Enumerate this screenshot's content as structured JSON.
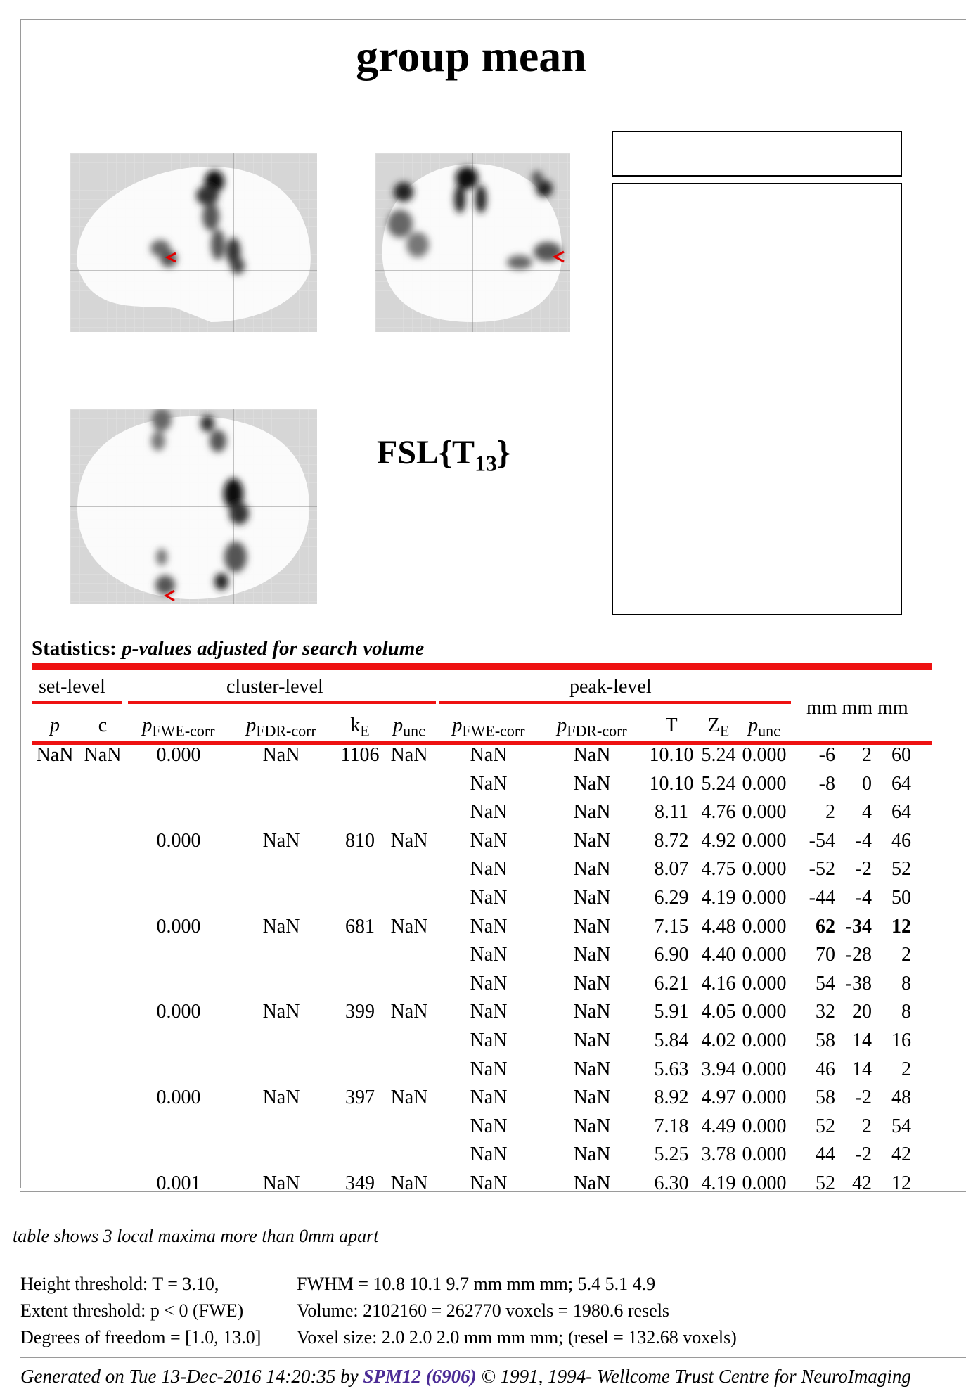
{
  "page": {
    "title": "group mean",
    "stat_label_main": "FSL{T",
    "stat_label_sub": "13",
    "stat_label_end": "}"
  },
  "statistics": {
    "heading_bold": "Statistics:",
    "heading_italic": "p-values adjusted for search volume",
    "groups": {
      "set": "set-level",
      "cluster": "cluster-level",
      "peak": "peak-level"
    },
    "coord_header": "mm mm mm",
    "columns": [
      {
        "key": "set_p",
        "main": "p",
        "sub": "",
        "italic": true
      },
      {
        "key": "set_c",
        "main": "c",
        "sub": "",
        "italic": false
      },
      {
        "key": "cl_fwe",
        "main": "p",
        "sub": "FWE-corr",
        "italic": true
      },
      {
        "key": "cl_fdr",
        "main": "p",
        "sub": "FDR-corr",
        "italic": true
      },
      {
        "key": "ke",
        "main": "k",
        "sub": "E",
        "italic": false
      },
      {
        "key": "cl_unc",
        "main": "p",
        "sub": "unc",
        "italic": true
      },
      {
        "key": "pk_fwe",
        "main": "p",
        "sub": "FWE-corr",
        "italic": true
      },
      {
        "key": "pk_fdr",
        "main": "p",
        "sub": "FDR-corr",
        "italic": true
      },
      {
        "key": "t",
        "main": "T",
        "sub": "",
        "italic": false
      },
      {
        "key": "ze",
        "main": "Z",
        "sub": "E",
        "italic": false
      },
      {
        "key": "pk_unc",
        "main": "p",
        "sub": "unc",
        "italic": true
      }
    ],
    "rows": [
      {
        "set_p": "NaN",
        "set_c": "NaN",
        "cl_fwe": "0.000",
        "cl_fdr": "NaN",
        "ke": "1106",
        "cl_unc": "NaN",
        "pk_fwe": "NaN",
        "pk_fdr": "NaN",
        "t": "10.10",
        "ze": "5.24",
        "pk_unc": "0.000",
        "x": "-6",
        "y": "2",
        "z": "60",
        "bold": false
      },
      {
        "set_p": "",
        "set_c": "",
        "cl_fwe": "",
        "cl_fdr": "",
        "ke": "",
        "cl_unc": "",
        "pk_fwe": "NaN",
        "pk_fdr": "NaN",
        "t": "10.10",
        "ze": "5.24",
        "pk_unc": "0.000",
        "x": "-8",
        "y": "0",
        "z": "64",
        "bold": false
      },
      {
        "set_p": "",
        "set_c": "",
        "cl_fwe": "",
        "cl_fdr": "",
        "ke": "",
        "cl_unc": "",
        "pk_fwe": "NaN",
        "pk_fdr": "NaN",
        "t": "8.11",
        "ze": "4.76",
        "pk_unc": "0.000",
        "x": "2",
        "y": "4",
        "z": "64",
        "bold": false
      },
      {
        "set_p": "",
        "set_c": "",
        "cl_fwe": "0.000",
        "cl_fdr": "NaN",
        "ke": "810",
        "cl_unc": "NaN",
        "pk_fwe": "NaN",
        "pk_fdr": "NaN",
        "t": "8.72",
        "ze": "4.92",
        "pk_unc": "0.000",
        "x": "-54",
        "y": "-4",
        "z": "46",
        "bold": false
      },
      {
        "set_p": "",
        "set_c": "",
        "cl_fwe": "",
        "cl_fdr": "",
        "ke": "",
        "cl_unc": "",
        "pk_fwe": "NaN",
        "pk_fdr": "NaN",
        "t": "8.07",
        "ze": "4.75",
        "pk_unc": "0.000",
        "x": "-52",
        "y": "-2",
        "z": "52",
        "bold": false
      },
      {
        "set_p": "",
        "set_c": "",
        "cl_fwe": "",
        "cl_fdr": "",
        "ke": "",
        "cl_unc": "",
        "pk_fwe": "NaN",
        "pk_fdr": "NaN",
        "t": "6.29",
        "ze": "4.19",
        "pk_unc": "0.000",
        "x": "-44",
        "y": "-4",
        "z": "50",
        "bold": false
      },
      {
        "set_p": "",
        "set_c": "",
        "cl_fwe": "0.000",
        "cl_fdr": "NaN",
        "ke": "681",
        "cl_unc": "NaN",
        "pk_fwe": "NaN",
        "pk_fdr": "NaN",
        "t": "7.15",
        "ze": "4.48",
        "pk_unc": "0.000",
        "x": "62",
        "y": "-34",
        "z": "12",
        "bold": true
      },
      {
        "set_p": "",
        "set_c": "",
        "cl_fwe": "",
        "cl_fdr": "",
        "ke": "",
        "cl_unc": "",
        "pk_fwe": "NaN",
        "pk_fdr": "NaN",
        "t": "6.90",
        "ze": "4.40",
        "pk_unc": "0.000",
        "x": "70",
        "y": "-28",
        "z": "2",
        "bold": false
      },
      {
        "set_p": "",
        "set_c": "",
        "cl_fwe": "",
        "cl_fdr": "",
        "ke": "",
        "cl_unc": "",
        "pk_fwe": "NaN",
        "pk_fdr": "NaN",
        "t": "6.21",
        "ze": "4.16",
        "pk_unc": "0.000",
        "x": "54",
        "y": "-38",
        "z": "8",
        "bold": false
      },
      {
        "set_p": "",
        "set_c": "",
        "cl_fwe": "0.000",
        "cl_fdr": "NaN",
        "ke": "399",
        "cl_unc": "NaN",
        "pk_fwe": "NaN",
        "pk_fdr": "NaN",
        "t": "5.91",
        "ze": "4.05",
        "pk_unc": "0.000",
        "x": "32",
        "y": "20",
        "z": "8",
        "bold": false
      },
      {
        "set_p": "",
        "set_c": "",
        "cl_fwe": "",
        "cl_fdr": "",
        "ke": "",
        "cl_unc": "",
        "pk_fwe": "NaN",
        "pk_fdr": "NaN",
        "t": "5.84",
        "ze": "4.02",
        "pk_unc": "0.000",
        "x": "58",
        "y": "14",
        "z": "16",
        "bold": false
      },
      {
        "set_p": "",
        "set_c": "",
        "cl_fwe": "",
        "cl_fdr": "",
        "ke": "",
        "cl_unc": "",
        "pk_fwe": "NaN",
        "pk_fdr": "NaN",
        "t": "5.63",
        "ze": "3.94",
        "pk_unc": "0.000",
        "x": "46",
        "y": "14",
        "z": "2",
        "bold": false
      },
      {
        "set_p": "",
        "set_c": "",
        "cl_fwe": "0.000",
        "cl_fdr": "NaN",
        "ke": "397",
        "cl_unc": "NaN",
        "pk_fwe": "NaN",
        "pk_fdr": "NaN",
        "t": "8.92",
        "ze": "4.97",
        "pk_unc": "0.000",
        "x": "58",
        "y": "-2",
        "z": "48",
        "bold": false
      },
      {
        "set_p": "",
        "set_c": "",
        "cl_fwe": "",
        "cl_fdr": "",
        "ke": "",
        "cl_unc": "",
        "pk_fwe": "NaN",
        "pk_fdr": "NaN",
        "t": "7.18",
        "ze": "4.49",
        "pk_unc": "0.000",
        "x": "52",
        "y": "2",
        "z": "54",
        "bold": false
      },
      {
        "set_p": "",
        "set_c": "",
        "cl_fwe": "",
        "cl_fdr": "",
        "ke": "",
        "cl_unc": "",
        "pk_fwe": "NaN",
        "pk_fdr": "NaN",
        "t": "5.25",
        "ze": "3.78",
        "pk_unc": "0.000",
        "x": "44",
        "y": "-2",
        "z": "42",
        "bold": false
      },
      {
        "set_p": "",
        "set_c": "",
        "cl_fwe": "0.001",
        "cl_fdr": "NaN",
        "ke": "349",
        "cl_unc": "NaN",
        "pk_fwe": "NaN",
        "pk_fdr": "NaN",
        "t": "6.30",
        "ze": "4.19",
        "pk_unc": "0.000",
        "x": "52",
        "y": "42",
        "z": "12",
        "bold": false
      }
    ]
  },
  "footer": {
    "table_note": "table shows 3 local maxima more than 0mm apart",
    "height_threshold": "Height threshold: T = 3.10,",
    "extent_threshold": "Extent threshold: p < 0 (FWE)",
    "dof": "Degrees of freedom = [1.0, 13.0]",
    "fwhm": "FWHM = 10.8 10.1 9.7 mm mm mm; 5.4 5.1 4.9",
    "volume": "Volume: 2102160 = 262770 voxels = 1980.6 resels",
    "voxel_size": "Voxel size: 2.0 2.0 2.0 mm mm mm; (resel = 132.68 voxels)",
    "generated_prefix": "Generated on Tue 13-Dec-2016 14:20:35 by ",
    "generated_link": "SPM12 (6906)",
    "generated_suffix": " © 1991, 1994- Wellcome Trust Centre for NeuroImaging",
    "link_color": "#4b2b96"
  },
  "colors": {
    "rule": "#ee1111",
    "mip_background": "#d8d8d8",
    "cursor": "#e00000"
  }
}
